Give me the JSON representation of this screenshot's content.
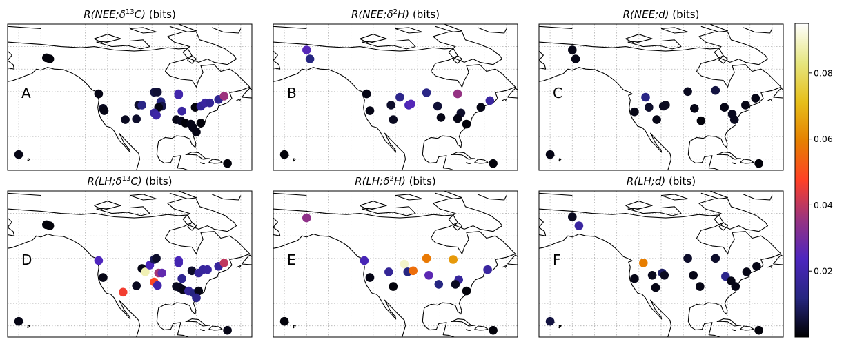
{
  "figure": {
    "colorbar": {
      "ticks": [
        0.02,
        0.04,
        0.06,
        0.08
      ],
      "tick_labels": [
        "0.02",
        "0.04",
        "0.06",
        "0.08"
      ],
      "range": [
        0.0,
        0.095
      ],
      "colormap": "CMRmap"
    }
  },
  "chart_data": [
    {
      "type": "scatter",
      "title_parts": [
        "R(",
        "NEE",
        ";δ",
        "13",
        "C) (bits)"
      ],
      "panel_label": "A",
      "points": [
        {
          "lon": -147.5,
          "lat": 65.0,
          "value": 0.001
        },
        {
          "lon": -146.0,
          "lat": 64.5,
          "value": 0.001
        },
        {
          "lon": -160.0,
          "lat": 22.0,
          "value": 0.002
        },
        {
          "lon": -124.0,
          "lat": 49.0,
          "value": 0.002
        },
        {
          "lon": -122.0,
          "lat": 42.5,
          "value": 0.003
        },
        {
          "lon": -121.5,
          "lat": 41.5,
          "value": 0.002
        },
        {
          "lon": -112.0,
          "lat": 37.5,
          "value": 0.003
        },
        {
          "lon": -107.0,
          "lat": 37.8,
          "value": 0.004
        },
        {
          "lon": -106.0,
          "lat": 44.0,
          "value": 0.004
        },
        {
          "lon": -104.5,
          "lat": 44.0,
          "value": 0.013
        },
        {
          "lon": -99.0,
          "lat": 49.7,
          "value": 0.006
        },
        {
          "lon": -97.5,
          "lat": 49.8,
          "value": 0.005
        },
        {
          "lon": -96.0,
          "lat": 45.5,
          "value": 0.012
        },
        {
          "lon": -95.5,
          "lat": 43.5,
          "value": 0.007
        },
        {
          "lon": -97.0,
          "lat": 43.0,
          "value": 0.002
        },
        {
          "lon": -99.0,
          "lat": 40.5,
          "value": 0.017
        },
        {
          "lon": -98.0,
          "lat": 39.5,
          "value": 0.019
        },
        {
          "lon": -88.0,
          "lat": 49.0,
          "value": 0.021
        },
        {
          "lon": -88.0,
          "lat": 48.5,
          "value": 0.02
        },
        {
          "lon": -80.5,
          "lat": 43.0,
          "value": 0.001
        },
        {
          "lon": -78.0,
          "lat": 43.5,
          "value": 0.016
        },
        {
          "lon": -76.0,
          "lat": 45.0,
          "value": 0.018
        },
        {
          "lon": -74.0,
          "lat": 45.0,
          "value": 0.016
        },
        {
          "lon": -70.0,
          "lat": 46.5,
          "value": 0.015
        },
        {
          "lon": -67.5,
          "lat": 48.0,
          "value": 0.036
        },
        {
          "lon": -86.5,
          "lat": 41.3,
          "value": 0.018
        },
        {
          "lon": -89.0,
          "lat": 37.5,
          "value": 0.002
        },
        {
          "lon": -87.0,
          "lat": 37.0,
          "value": 0.003
        },
        {
          "lon": -85.0,
          "lat": 36.0,
          "value": 0.001
        },
        {
          "lon": -82.5,
          "lat": 35.5,
          "value": 0.002
        },
        {
          "lon": -81.5,
          "lat": 34.0,
          "value": 0.002
        },
        {
          "lon": -78.0,
          "lat": 36.0,
          "value": 0.001
        },
        {
          "lon": -80.0,
          "lat": 32.0,
          "value": 0.002
        },
        {
          "lon": -66.0,
          "lat": 18.0,
          "value": 0.001
        }
      ]
    },
    {
      "type": "scatter",
      "title_parts": [
        "R(",
        "NEE",
        ";δ",
        "2",
        "H) (bits)"
      ],
      "panel_label": "B",
      "points": [
        {
          "lon": -150.0,
          "lat": 68.5,
          "value": 0.025
        },
        {
          "lon": -148.5,
          "lat": 64.5,
          "value": 0.012
        },
        {
          "lon": -160.0,
          "lat": 22.0,
          "value": 0.001
        },
        {
          "lon": -123.0,
          "lat": 49.0,
          "value": 0.002
        },
        {
          "lon": -121.5,
          "lat": 41.5,
          "value": 0.002
        },
        {
          "lon": -112.0,
          "lat": 44.0,
          "value": 0.004
        },
        {
          "lon": -108.0,
          "lat": 47.5,
          "value": 0.014
        },
        {
          "lon": -104.0,
          "lat": 44.0,
          "value": 0.022
        },
        {
          "lon": -103.0,
          "lat": 44.5,
          "value": 0.025
        },
        {
          "lon": -111.0,
          "lat": 37.5,
          "value": 0.003
        },
        {
          "lon": -96.0,
          "lat": 49.5,
          "value": 0.013
        },
        {
          "lon": -82.0,
          "lat": 49.0,
          "value": 0.035
        },
        {
          "lon": -91.0,
          "lat": 43.5,
          "value": 0.005
        },
        {
          "lon": -89.5,
          "lat": 38.5,
          "value": 0.002
        },
        {
          "lon": -80.5,
          "lat": 40.5,
          "value": 0.004
        },
        {
          "lon": -82.0,
          "lat": 38.0,
          "value": 0.002
        },
        {
          "lon": -78.0,
          "lat": 35.5,
          "value": 0.001
        },
        {
          "lon": -71.5,
          "lat": 43.0,
          "value": 0.002
        },
        {
          "lon": -67.5,
          "lat": 46.0,
          "value": 0.018
        },
        {
          "lon": -66.0,
          "lat": 18.0,
          "value": 0.001
        }
      ]
    },
    {
      "type": "scatter",
      "title_parts": [
        "R(",
        "NEE",
        ";",
        "d",
        ") (bits)"
      ],
      "panel_label": "C",
      "points": [
        {
          "lon": -150.0,
          "lat": 68.5,
          "value": 0.002
        },
        {
          "lon": -148.5,
          "lat": 64.5,
          "value": 0.002
        },
        {
          "lon": -160.0,
          "lat": 22.0,
          "value": 0.002
        },
        {
          "lon": -122.0,
          "lat": 41.0,
          "value": 0.002
        },
        {
          "lon": -117.0,
          "lat": 47.5,
          "value": 0.013
        },
        {
          "lon": -115.5,
          "lat": 43.0,
          "value": 0.004
        },
        {
          "lon": -109.0,
          "lat": 43.5,
          "value": 0.003
        },
        {
          "lon": -108.0,
          "lat": 44.0,
          "value": 0.003
        },
        {
          "lon": -112.0,
          "lat": 37.5,
          "value": 0.002
        },
        {
          "lon": -98.0,
          "lat": 50.0,
          "value": 0.003
        },
        {
          "lon": -85.5,
          "lat": 50.5,
          "value": 0.006
        },
        {
          "lon": -95.0,
          "lat": 42.5,
          "value": 0.002
        },
        {
          "lon": -92.0,
          "lat": 37.0,
          "value": 0.001
        },
        {
          "lon": -81.5,
          "lat": 43.0,
          "value": 0.002
        },
        {
          "lon": -78.0,
          "lat": 40.0,
          "value": 0.003
        },
        {
          "lon": -77.0,
          "lat": 37.5,
          "value": 0.003
        },
        {
          "lon": -72.0,
          "lat": 44.0,
          "value": 0.002
        },
        {
          "lon": -67.5,
          "lat": 47.0,
          "value": 0.002
        },
        {
          "lon": -66.0,
          "lat": 18.0,
          "value": 0.001
        }
      ]
    },
    {
      "type": "scatter",
      "title_parts": [
        "R(",
        "LH",
        ";δ",
        "13",
        "C) (bits)"
      ],
      "panel_label": "D",
      "points": [
        {
          "lon": -147.5,
          "lat": 65.0,
          "value": 0.001
        },
        {
          "lon": -146.0,
          "lat": 64.5,
          "value": 0.001
        },
        {
          "lon": -160.0,
          "lat": 22.0,
          "value": 0.002
        },
        {
          "lon": -124.0,
          "lat": 49.0,
          "value": 0.024
        },
        {
          "lon": -122.0,
          "lat": 41.5,
          "value": 0.002
        },
        {
          "lon": -113.0,
          "lat": 35.0,
          "value": 0.046
        },
        {
          "lon": -107.0,
          "lat": 37.8,
          "value": 0.003
        },
        {
          "lon": -104.5,
          "lat": 45.5,
          "value": 0.002
        },
        {
          "lon": -103.0,
          "lat": 44.0,
          "value": 0.088
        },
        {
          "lon": -101.0,
          "lat": 47.0,
          "value": 0.023
        },
        {
          "lon": -99.0,
          "lat": 49.5,
          "value": 0.008
        },
        {
          "lon": -98.0,
          "lat": 50.0,
          "value": 0.004
        },
        {
          "lon": -97.0,
          "lat": 43.5,
          "value": 0.037
        },
        {
          "lon": -95.5,
          "lat": 43.5,
          "value": 0.027
        },
        {
          "lon": -99.0,
          "lat": 39.5,
          "value": 0.049
        },
        {
          "lon": -97.5,
          "lat": 38.0,
          "value": 0.02
        },
        {
          "lon": -88.0,
          "lat": 49.0,
          "value": 0.023
        },
        {
          "lon": -88.0,
          "lat": 48.0,
          "value": 0.021
        },
        {
          "lon": -82.0,
          "lat": 44.5,
          "value": 0.004
        },
        {
          "lon": -79.0,
          "lat": 43.5,
          "value": 0.017
        },
        {
          "lon": -77.0,
          "lat": 45.0,
          "value": 0.017
        },
        {
          "lon": -75.0,
          "lat": 45.0,
          "value": 0.018
        },
        {
          "lon": -70.0,
          "lat": 46.5,
          "value": 0.017
        },
        {
          "lon": -67.5,
          "lat": 48.0,
          "value": 0.04
        },
        {
          "lon": -86.5,
          "lat": 41.0,
          "value": 0.015
        },
        {
          "lon": -89.0,
          "lat": 37.5,
          "value": 0.003
        },
        {
          "lon": -87.5,
          "lat": 37.0,
          "value": 0.003
        },
        {
          "lon": -86.0,
          "lat": 36.0,
          "value": 0.002
        },
        {
          "lon": -83.5,
          "lat": 35.5,
          "value": 0.016
        },
        {
          "lon": -81.0,
          "lat": 34.5,
          "value": 0.012
        },
        {
          "lon": -79.0,
          "lat": 35.5,
          "value": 0.002
        },
        {
          "lon": -80.0,
          "lat": 32.5,
          "value": 0.014
        },
        {
          "lon": -66.0,
          "lat": 18.0,
          "value": 0.002
        }
      ]
    },
    {
      "type": "scatter",
      "title_parts": [
        "R(",
        "LH",
        ";δ",
        "2",
        "H) (bits)"
      ],
      "panel_label": "E",
      "points": [
        {
          "lon": -150.0,
          "lat": 68.0,
          "value": 0.034
        },
        {
          "lon": -160.0,
          "lat": 22.0,
          "value": 0.001
        },
        {
          "lon": -124.0,
          "lat": 49.0,
          "value": 0.022
        },
        {
          "lon": -121.5,
          "lat": 41.5,
          "value": 0.002
        },
        {
          "lon": -111.0,
          "lat": 37.5,
          "value": 0.001
        },
        {
          "lon": -113.0,
          "lat": 44.0,
          "value": 0.016
        },
        {
          "lon": -106.0,
          "lat": 47.5,
          "value": 0.09
        },
        {
          "lon": -104.5,
          "lat": 44.0,
          "value": 0.012
        },
        {
          "lon": -102.0,
          "lat": 44.5,
          "value": 0.056
        },
        {
          "lon": -96.0,
          "lat": 50.0,
          "value": 0.058
        },
        {
          "lon": -84.0,
          "lat": 49.5,
          "value": 0.064
        },
        {
          "lon": -95.0,
          "lat": 42.5,
          "value": 0.026
        },
        {
          "lon": -90.5,
          "lat": 38.5,
          "value": 0.012
        },
        {
          "lon": -81.5,
          "lat": 40.5,
          "value": 0.017
        },
        {
          "lon": -83.0,
          "lat": 38.5,
          "value": 0.003
        },
        {
          "lon": -78.0,
          "lat": 35.5,
          "value": 0.001
        },
        {
          "lon": -68.5,
          "lat": 45.0,
          "value": 0.018
        },
        {
          "lon": -66.0,
          "lat": 18.0,
          "value": 0.001
        }
      ]
    },
    {
      "type": "scatter",
      "title_parts": [
        "R(",
        "LH",
        ";",
        "d",
        ") (bits)"
      ],
      "panel_label": "F",
      "points": [
        {
          "lon": -150.0,
          "lat": 68.5,
          "value": 0.003
        },
        {
          "lon": -147.0,
          "lat": 64.5,
          "value": 0.018
        },
        {
          "lon": -160.0,
          "lat": 22.0,
          "value": 0.006
        },
        {
          "lon": -122.0,
          "lat": 41.0,
          "value": 0.002
        },
        {
          "lon": -118.0,
          "lat": 48.0,
          "value": 0.059
        },
        {
          "lon": -114.0,
          "lat": 42.5,
          "value": 0.003
        },
        {
          "lon": -109.5,
          "lat": 43.5,
          "value": 0.009
        },
        {
          "lon": -108.5,
          "lat": 42.5,
          "value": 0.003
        },
        {
          "lon": -112.5,
          "lat": 37.0,
          "value": 0.002
        },
        {
          "lon": -98.0,
          "lat": 50.0,
          "value": 0.004
        },
        {
          "lon": -85.5,
          "lat": 50.0,
          "value": 0.004
        },
        {
          "lon": -95.5,
          "lat": 42.5,
          "value": 0.002
        },
        {
          "lon": -92.5,
          "lat": 37.5,
          "value": 0.002
        },
        {
          "lon": -81.0,
          "lat": 42.0,
          "value": 0.014
        },
        {
          "lon": -78.5,
          "lat": 40.0,
          "value": 0.002
        },
        {
          "lon": -76.5,
          "lat": 37.5,
          "value": 0.002
        },
        {
          "lon": -71.5,
          "lat": 44.0,
          "value": 0.002
        },
        {
          "lon": -67.0,
          "lat": 46.5,
          "value": 0.002
        },
        {
          "lon": -66.0,
          "lat": 18.0,
          "value": 0.001
        }
      ]
    }
  ]
}
